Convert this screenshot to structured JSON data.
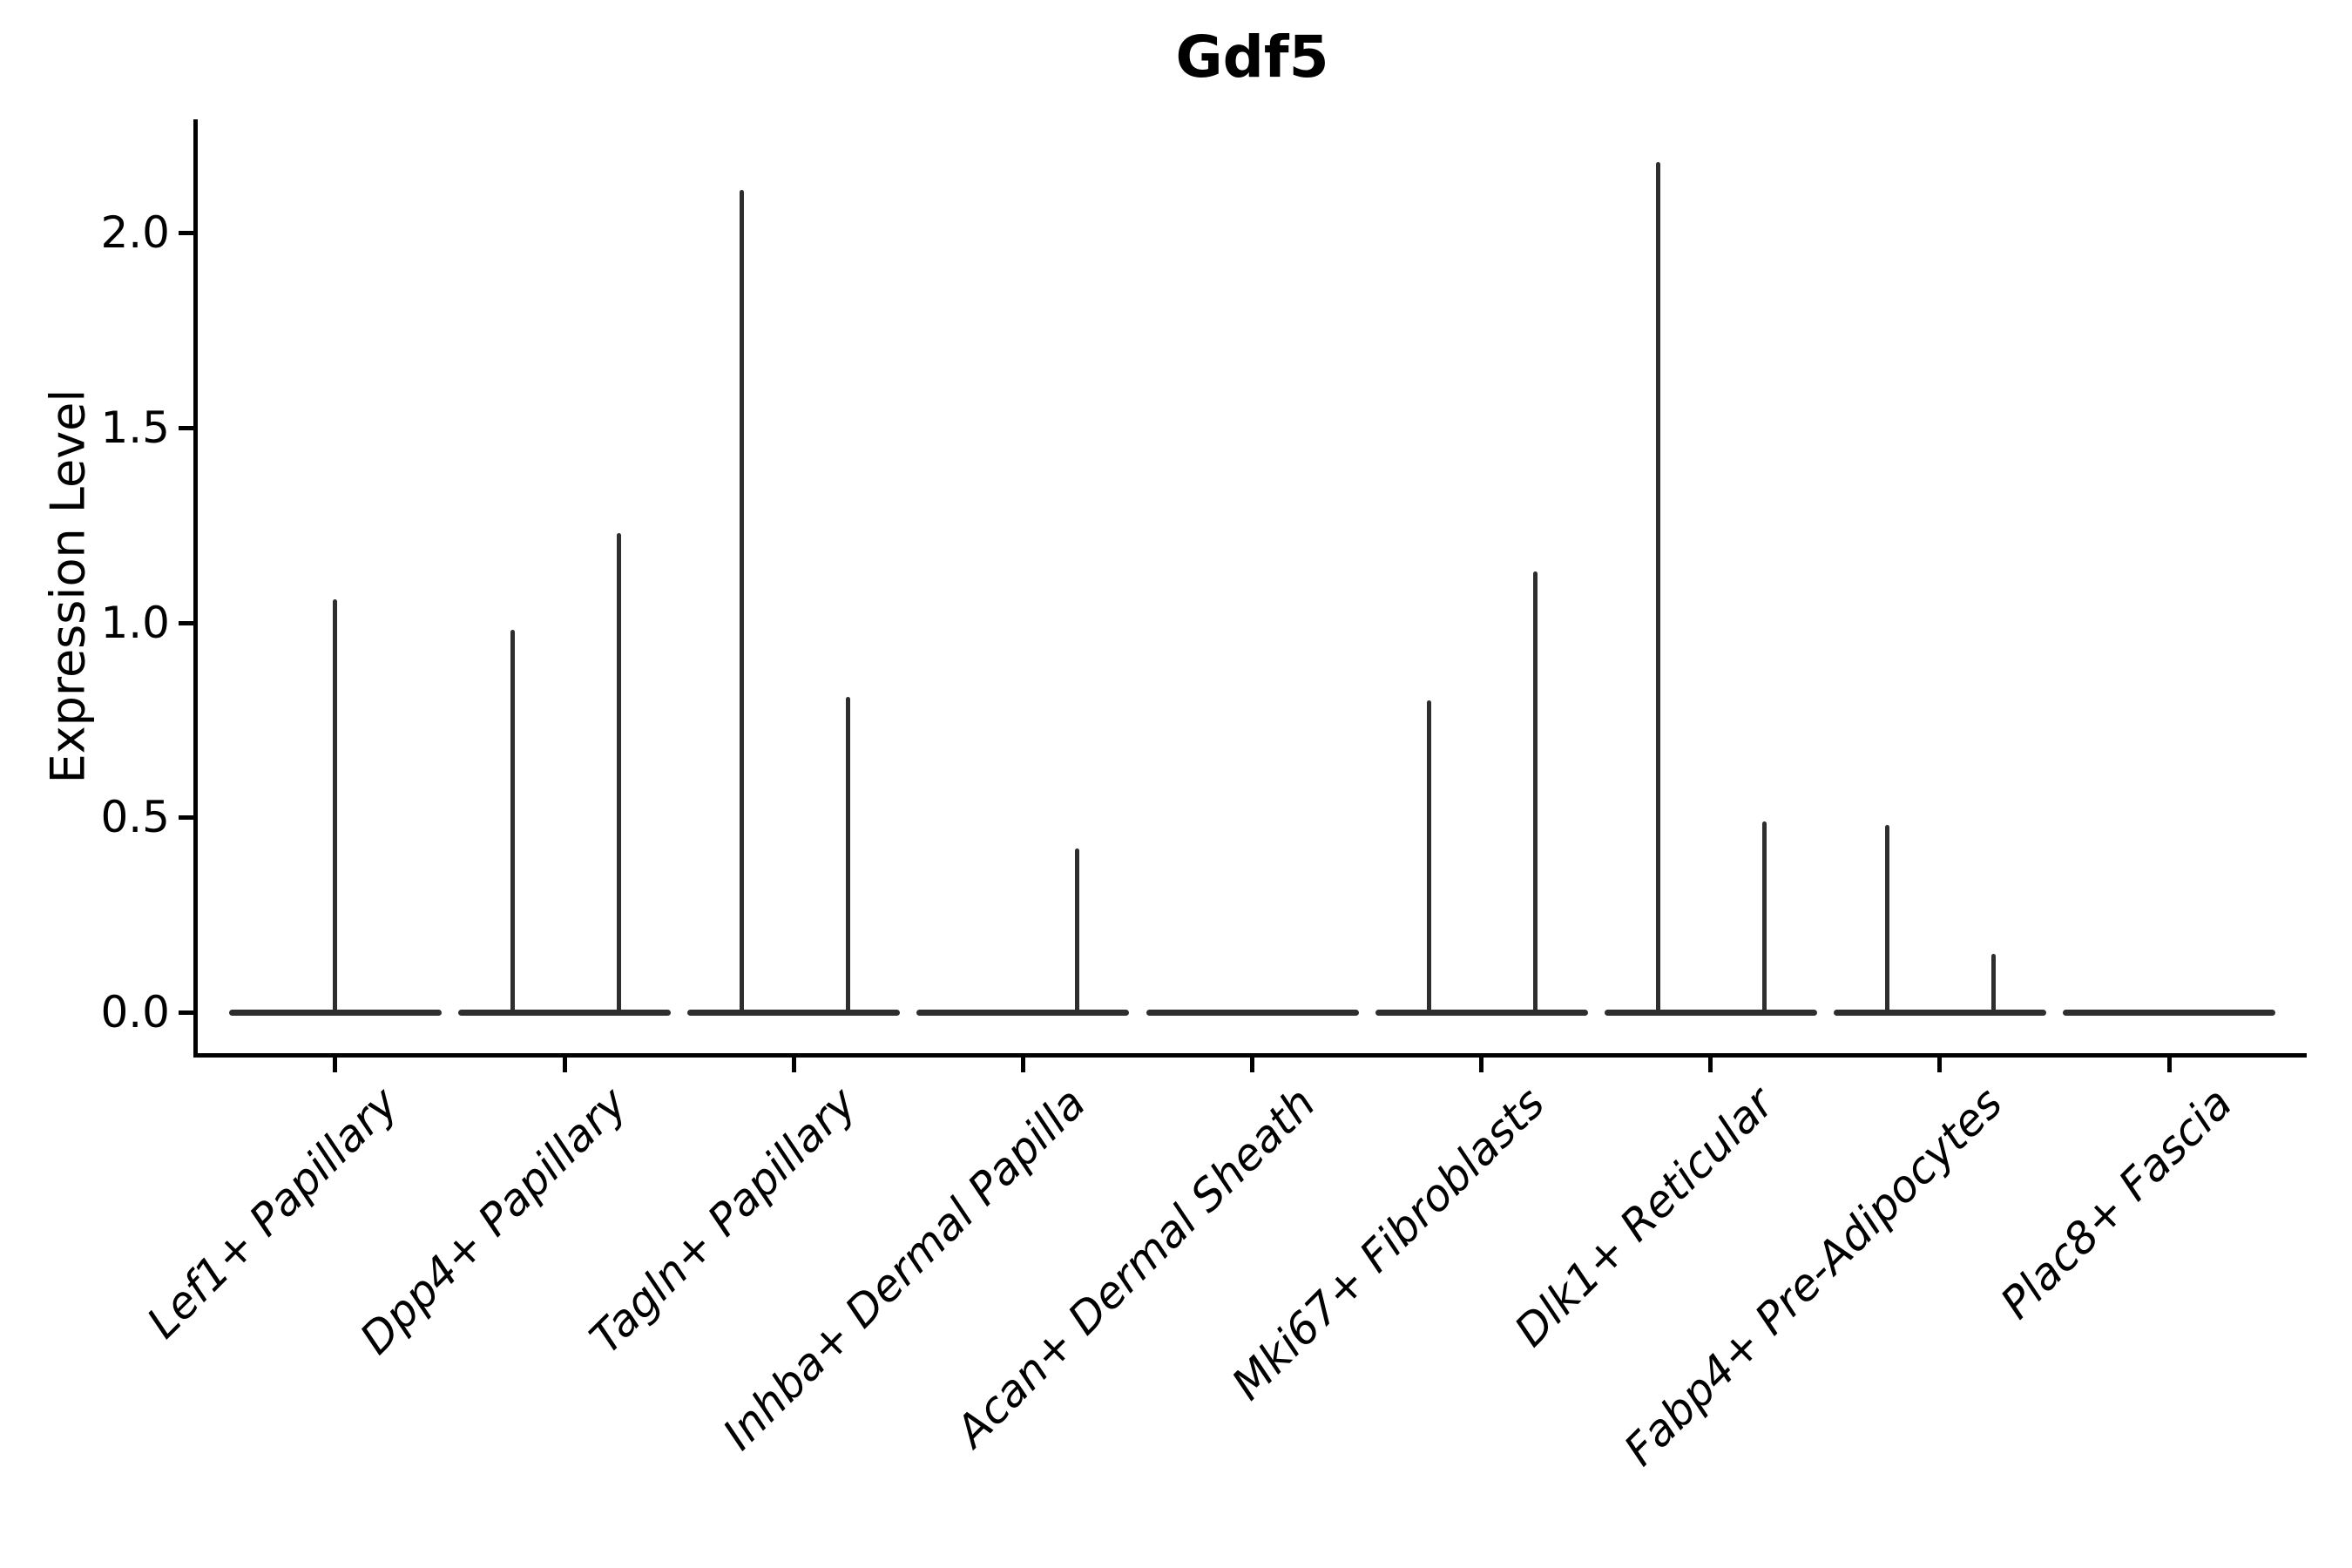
{
  "chart_data": {
    "type": "violin",
    "title": "Gdf5",
    "ylabel": "Expression Level",
    "xlabel": "",
    "yticks": [
      "0.0",
      "0.5",
      "1.0",
      "1.5",
      "2.0"
    ],
    "ytick_values": [
      0.0,
      0.5,
      1.0,
      1.5,
      2.0
    ],
    "ylim": [
      -0.11,
      2.29
    ],
    "grid": "off",
    "legend": "none",
    "categories": [
      "Lef1+ Papillary",
      "Dpp4+ Papillary",
      "Tagln+ Papillary",
      "Inhba+ Dermal Papilla",
      "Acan+ Dermal Sheath",
      "Mki67+ Fibroblasts",
      "Dlk1+ Reticular",
      "Fabp4+ Pre-Adipocytes",
      "Plac8+ Fascia"
    ],
    "violins": [
      {
        "category": "Lef1+ Papillary",
        "spikes": [
          {
            "pos": "center",
            "max": 1.06
          }
        ]
      },
      {
        "category": "Dpp4+ Papillary",
        "spikes": [
          {
            "pos": "left",
            "max": 0.98
          },
          {
            "pos": "right",
            "max": 1.23
          }
        ]
      },
      {
        "category": "Tagln+ Papillary",
        "spikes": [
          {
            "pos": "left",
            "max": 2.11
          },
          {
            "pos": "right",
            "max": 0.81
          }
        ]
      },
      {
        "category": "Inhba+ Dermal Papilla",
        "spikes": [
          {
            "pos": "right",
            "max": 0.42
          }
        ]
      },
      {
        "category": "Acan+ Dermal Sheath",
        "spikes": []
      },
      {
        "category": "Mki67+ Fibroblasts",
        "spikes": [
          {
            "pos": "left",
            "max": 0.8
          },
          {
            "pos": "right",
            "max": 1.13
          }
        ]
      },
      {
        "category": "Dlk1+ Reticular",
        "spikes": [
          {
            "pos": "left",
            "max": 2.18
          },
          {
            "pos": "right",
            "max": 0.49
          }
        ]
      },
      {
        "category": "Fabp4+ Pre-Adipocytes",
        "spikes": [
          {
            "pos": "left",
            "max": 0.48
          },
          {
            "pos": "right",
            "max": 0.15
          }
        ]
      },
      {
        "category": "Plac8+ Fascia",
        "spikes": []
      }
    ],
    "colors": {
      "background": "#ffffff",
      "ink": "#000000",
      "violin": "#2e2e2e"
    }
  }
}
